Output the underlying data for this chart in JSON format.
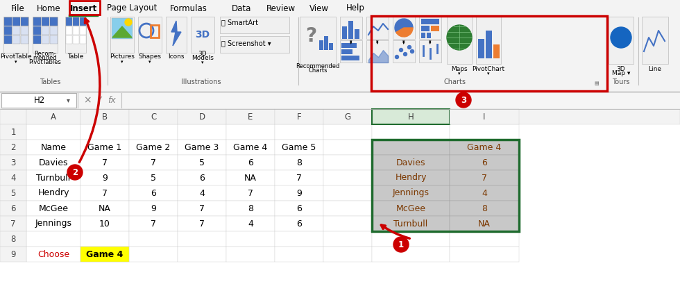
{
  "menu_items": [
    "File",
    "Home",
    "Insert",
    "Page Layout",
    "Formulas",
    "Data",
    "Review",
    "View",
    "Help"
  ],
  "active_menu": "Insert",
  "cell_ref": "H2",
  "table_headers": [
    "Name",
    "Game 1",
    "Game 2",
    "Game 3",
    "Game 4",
    "Game 5"
  ],
  "table_data": [
    [
      "Davies",
      "7",
      "7",
      "5",
      "6",
      "8"
    ],
    [
      "Turnbull",
      "9",
      "5",
      "6",
      "NA",
      "7"
    ],
    [
      "Hendry",
      "7",
      "6",
      "4",
      "7",
      "9"
    ],
    [
      "McGee",
      "NA",
      "9",
      "7",
      "8",
      "6"
    ],
    [
      "Jennings",
      "10",
      "7",
      "7",
      "4",
      "6"
    ]
  ],
  "right_table_header_col2": "Game 4",
  "right_table_data": [
    [
      "Davies",
      "6"
    ],
    [
      "Hendry",
      "7"
    ],
    [
      "Jennings",
      "4"
    ],
    [
      "McGee",
      "8"
    ],
    [
      "Turnbull",
      "NA"
    ]
  ],
  "choose_label": "Choose",
  "choose_value": "Game 4",
  "choose_bg": "#ffff00",
  "selected_border_color": "#1f6b2e",
  "right_table_bg": "#c8c8c8",
  "right_table_text_color": "#7b3800",
  "red_color": "#cc0000",
  "ribbon_bg": "#f3f3f3",
  "cell_bg": "#ffffff",
  "grid_color": "#d0d0d0",
  "row_header_bg": "#f3f3f3",
  "col_header_bg": "#f3f3f3",
  "col_h_header_bg": "#d8ead8",
  "green_underline": "#1f7a1f",
  "charts_section_label": "Charts",
  "tables_section_label": "Tables",
  "illus_section_label": "Illustrations",
  "tours_section_label": "Tours"
}
